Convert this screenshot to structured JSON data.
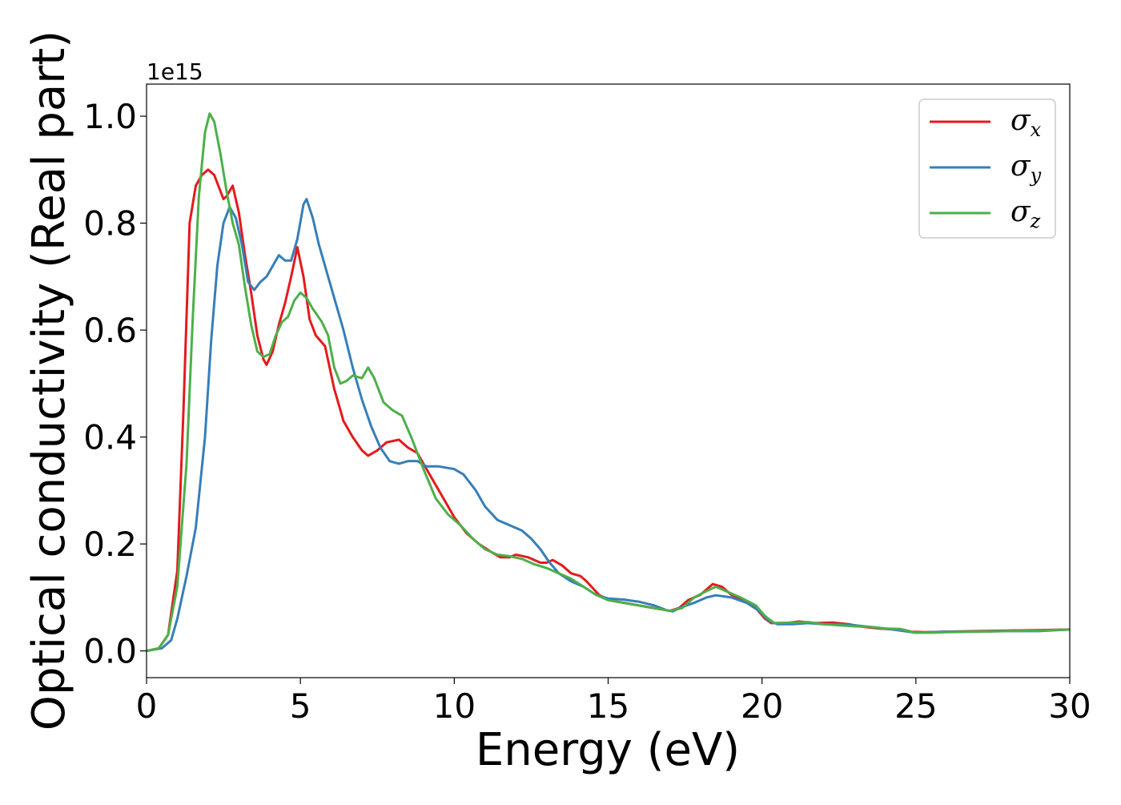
{
  "chart_data": {
    "type": "line",
    "xlabel": "Energy (eV)",
    "ylabel": "Optical conductivity (Real part)",
    "y_offset_label": "1e15",
    "xlim": [
      0,
      30
    ],
    "ylim": [
      -0.05,
      1.06
    ],
    "x_ticks": [
      0,
      5,
      10,
      15,
      20,
      25,
      30
    ],
    "x_tick_labels": [
      "0",
      "5",
      "10",
      "15",
      "20",
      "25",
      "30"
    ],
    "y_ticks": [
      0.0,
      0.2,
      0.4,
      0.6,
      0.8,
      1.0
    ],
    "y_tick_labels": [
      "0.0",
      "0.2",
      "0.4",
      "0.6",
      "0.8",
      "1.0"
    ],
    "grid": false,
    "legend_position": "top-right",
    "series": [
      {
        "name": "σx",
        "symbol": "σ",
        "subscript": "x",
        "color": "#e41a1c",
        "points": [
          [
            0,
            0.0
          ],
          [
            0.4,
            0.005
          ],
          [
            0.7,
            0.03
          ],
          [
            1.0,
            0.15
          ],
          [
            1.2,
            0.45
          ],
          [
            1.4,
            0.8
          ],
          [
            1.6,
            0.87
          ],
          [
            1.8,
            0.89
          ],
          [
            2.0,
            0.9
          ],
          [
            2.2,
            0.89
          ],
          [
            2.4,
            0.86
          ],
          [
            2.5,
            0.845
          ],
          [
            2.6,
            0.85
          ],
          [
            2.8,
            0.87
          ],
          [
            3.0,
            0.82
          ],
          [
            3.2,
            0.74
          ],
          [
            3.4,
            0.67
          ],
          [
            3.6,
            0.59
          ],
          [
            3.8,
            0.545
          ],
          [
            3.9,
            0.535
          ],
          [
            4.1,
            0.56
          ],
          [
            4.3,
            0.61
          ],
          [
            4.5,
            0.65
          ],
          [
            4.7,
            0.7
          ],
          [
            4.9,
            0.755
          ],
          [
            5.1,
            0.7
          ],
          [
            5.3,
            0.62
          ],
          [
            5.5,
            0.59
          ],
          [
            5.8,
            0.57
          ],
          [
            6.1,
            0.49
          ],
          [
            6.4,
            0.43
          ],
          [
            6.7,
            0.4
          ],
          [
            7.0,
            0.375
          ],
          [
            7.2,
            0.365
          ],
          [
            7.5,
            0.375
          ],
          [
            7.8,
            0.39
          ],
          [
            8.2,
            0.395
          ],
          [
            8.5,
            0.38
          ],
          [
            8.8,
            0.37
          ],
          [
            9.2,
            0.33
          ],
          [
            9.6,
            0.29
          ],
          [
            10.0,
            0.25
          ],
          [
            10.4,
            0.22
          ],
          [
            10.8,
            0.2
          ],
          [
            11.2,
            0.185
          ],
          [
            11.5,
            0.175
          ],
          [
            11.8,
            0.175
          ],
          [
            12.0,
            0.18
          ],
          [
            12.4,
            0.175
          ],
          [
            12.8,
            0.165
          ],
          [
            13.0,
            0.165
          ],
          [
            13.2,
            0.17
          ],
          [
            13.5,
            0.16
          ],
          [
            13.8,
            0.145
          ],
          [
            14.1,
            0.14
          ],
          [
            14.3,
            0.13
          ],
          [
            14.7,
            0.105
          ],
          [
            15.0,
            0.095
          ],
          [
            15.5,
            0.09
          ],
          [
            16.0,
            0.085
          ],
          [
            16.5,
            0.08
          ],
          [
            17.0,
            0.075
          ],
          [
            17.3,
            0.08
          ],
          [
            17.6,
            0.095
          ],
          [
            18.0,
            0.105
          ],
          [
            18.4,
            0.125
          ],
          [
            18.7,
            0.12
          ],
          [
            19.0,
            0.105
          ],
          [
            19.4,
            0.095
          ],
          [
            19.8,
            0.08
          ],
          [
            20.1,
            0.06
          ],
          [
            20.3,
            0.052
          ],
          [
            20.8,
            0.052
          ],
          [
            21.2,
            0.055
          ],
          [
            21.7,
            0.052
          ],
          [
            22.3,
            0.053
          ],
          [
            22.8,
            0.05
          ],
          [
            23.3,
            0.045
          ],
          [
            23.8,
            0.042
          ],
          [
            24.3,
            0.04
          ],
          [
            24.8,
            0.036
          ],
          [
            25.3,
            0.035
          ],
          [
            26.0,
            0.036
          ],
          [
            27.0,
            0.037
          ],
          [
            28.0,
            0.038
          ],
          [
            29.0,
            0.039
          ],
          [
            30.0,
            0.04
          ]
        ]
      },
      {
        "name": "σy",
        "symbol": "σ",
        "subscript": "y",
        "color": "#377eb8",
        "points": [
          [
            0,
            0.0
          ],
          [
            0.5,
            0.005
          ],
          [
            0.8,
            0.02
          ],
          [
            1.0,
            0.06
          ],
          [
            1.3,
            0.14
          ],
          [
            1.6,
            0.23
          ],
          [
            1.9,
            0.4
          ],
          [
            2.1,
            0.58
          ],
          [
            2.3,
            0.72
          ],
          [
            2.5,
            0.8
          ],
          [
            2.7,
            0.83
          ],
          [
            2.9,
            0.81
          ],
          [
            3.1,
            0.76
          ],
          [
            3.3,
            0.69
          ],
          [
            3.5,
            0.675
          ],
          [
            3.7,
            0.69
          ],
          [
            3.9,
            0.7
          ],
          [
            4.1,
            0.72
          ],
          [
            4.3,
            0.74
          ],
          [
            4.5,
            0.73
          ],
          [
            4.7,
            0.73
          ],
          [
            4.9,
            0.77
          ],
          [
            5.1,
            0.835
          ],
          [
            5.2,
            0.845
          ],
          [
            5.4,
            0.81
          ],
          [
            5.6,
            0.76
          ],
          [
            5.8,
            0.72
          ],
          [
            6.1,
            0.66
          ],
          [
            6.4,
            0.6
          ],
          [
            6.7,
            0.53
          ],
          [
            7.0,
            0.47
          ],
          [
            7.3,
            0.42
          ],
          [
            7.6,
            0.38
          ],
          [
            7.9,
            0.355
          ],
          [
            8.2,
            0.35
          ],
          [
            8.5,
            0.355
          ],
          [
            8.8,
            0.355
          ],
          [
            9.1,
            0.345
          ],
          [
            9.5,
            0.345
          ],
          [
            10.0,
            0.34
          ],
          [
            10.3,
            0.33
          ],
          [
            10.7,
            0.3
          ],
          [
            11.0,
            0.27
          ],
          [
            11.4,
            0.245
          ],
          [
            11.8,
            0.235
          ],
          [
            12.2,
            0.225
          ],
          [
            12.5,
            0.21
          ],
          [
            12.8,
            0.19
          ],
          [
            13.1,
            0.165
          ],
          [
            13.4,
            0.145
          ],
          [
            13.8,
            0.13
          ],
          [
            14.2,
            0.12
          ],
          [
            14.6,
            0.105
          ],
          [
            15.0,
            0.098
          ],
          [
            15.5,
            0.096
          ],
          [
            16.0,
            0.092
          ],
          [
            16.5,
            0.085
          ],
          [
            16.9,
            0.076
          ],
          [
            17.1,
            0.074
          ],
          [
            17.4,
            0.082
          ],
          [
            17.8,
            0.09
          ],
          [
            18.2,
            0.1
          ],
          [
            18.5,
            0.104
          ],
          [
            19.0,
            0.1
          ],
          [
            19.5,
            0.09
          ],
          [
            19.9,
            0.075
          ],
          [
            20.2,
            0.057
          ],
          [
            20.5,
            0.05
          ],
          [
            21.0,
            0.05
          ],
          [
            21.5,
            0.052
          ],
          [
            22.0,
            0.05
          ],
          [
            22.5,
            0.05
          ],
          [
            23.0,
            0.048
          ],
          [
            23.5,
            0.045
          ],
          [
            24.0,
            0.042
          ],
          [
            24.5,
            0.038
          ],
          [
            25.0,
            0.034
          ],
          [
            25.5,
            0.035
          ],
          [
            26.0,
            0.036
          ],
          [
            27.0,
            0.036
          ],
          [
            28.0,
            0.037
          ],
          [
            29.0,
            0.037
          ],
          [
            30.0,
            0.04
          ]
        ]
      },
      {
        "name": "σz",
        "symbol": "σ",
        "subscript": "z",
        "color": "#4daf4a",
        "points": [
          [
            0,
            0.0
          ],
          [
            0.4,
            0.005
          ],
          [
            0.7,
            0.03
          ],
          [
            1.0,
            0.12
          ],
          [
            1.3,
            0.35
          ],
          [
            1.5,
            0.62
          ],
          [
            1.7,
            0.85
          ],
          [
            1.9,
            0.97
          ],
          [
            2.05,
            1.005
          ],
          [
            2.2,
            0.99
          ],
          [
            2.4,
            0.93
          ],
          [
            2.6,
            0.86
          ],
          [
            2.8,
            0.8
          ],
          [
            3.0,
            0.76
          ],
          [
            3.2,
            0.68
          ],
          [
            3.4,
            0.61
          ],
          [
            3.6,
            0.56
          ],
          [
            3.8,
            0.55
          ],
          [
            4.0,
            0.555
          ],
          [
            4.2,
            0.59
          ],
          [
            4.4,
            0.615
          ],
          [
            4.6,
            0.625
          ],
          [
            4.8,
            0.655
          ],
          [
            5.0,
            0.67
          ],
          [
            5.2,
            0.66
          ],
          [
            5.4,
            0.64
          ],
          [
            5.7,
            0.615
          ],
          [
            5.9,
            0.59
          ],
          [
            6.1,
            0.53
          ],
          [
            6.3,
            0.5
          ],
          [
            6.5,
            0.505
          ],
          [
            6.7,
            0.515
          ],
          [
            7.0,
            0.51
          ],
          [
            7.2,
            0.53
          ],
          [
            7.4,
            0.51
          ],
          [
            7.7,
            0.465
          ],
          [
            8.0,
            0.45
          ],
          [
            8.3,
            0.44
          ],
          [
            8.6,
            0.4
          ],
          [
            9.0,
            0.34
          ],
          [
            9.4,
            0.285
          ],
          [
            9.8,
            0.255
          ],
          [
            10.2,
            0.235
          ],
          [
            10.6,
            0.21
          ],
          [
            11.0,
            0.19
          ],
          [
            11.4,
            0.18
          ],
          [
            11.8,
            0.177
          ],
          [
            12.2,
            0.172
          ],
          [
            12.6,
            0.162
          ],
          [
            13.0,
            0.155
          ],
          [
            13.4,
            0.145
          ],
          [
            13.8,
            0.135
          ],
          [
            14.2,
            0.12
          ],
          [
            14.6,
            0.105
          ],
          [
            15.0,
            0.095
          ],
          [
            15.5,
            0.09
          ],
          [
            16.0,
            0.085
          ],
          [
            16.5,
            0.08
          ],
          [
            17.0,
            0.075
          ],
          [
            17.4,
            0.08
          ],
          [
            17.8,
            0.1
          ],
          [
            18.2,
            0.112
          ],
          [
            18.5,
            0.12
          ],
          [
            18.9,
            0.11
          ],
          [
            19.3,
            0.1
          ],
          [
            19.8,
            0.085
          ],
          [
            20.1,
            0.065
          ],
          [
            20.4,
            0.052
          ],
          [
            21.0,
            0.053
          ],
          [
            21.5,
            0.054
          ],
          [
            22.0,
            0.05
          ],
          [
            22.5,
            0.048
          ],
          [
            23.0,
            0.046
          ],
          [
            23.5,
            0.045
          ],
          [
            24.0,
            0.042
          ],
          [
            24.5,
            0.041
          ],
          [
            25.0,
            0.034
          ],
          [
            25.5,
            0.034
          ],
          [
            26.0,
            0.035
          ],
          [
            27.0,
            0.036
          ],
          [
            28.0,
            0.037
          ],
          [
            29.0,
            0.038
          ],
          [
            30.0,
            0.04
          ]
        ]
      }
    ]
  }
}
